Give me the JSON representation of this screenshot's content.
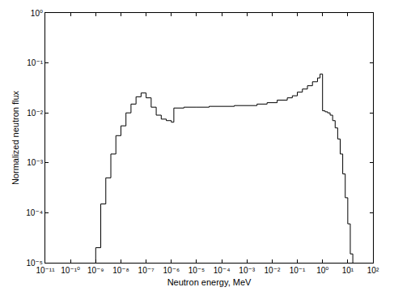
{
  "chart_data": {
    "type": "histogram",
    "x_label": "Neutron energy, MeV",
    "y_label": "Normalized neutron flux",
    "log": true,
    "grid": false,
    "color": "#000000",
    "bins": [
      1e-09,
      1.585e-09,
      2.512e-09,
      3.981e-09,
      6.31e-09,
      1e-08,
      1.585e-08,
      2.512e-08,
      3.981e-08,
      6.31e-08,
      1e-07,
      1.585e-07,
      2.512e-07,
      3.981e-07,
      6.31e-07,
      1e-06,
      1.259e-06,
      3.162e-06,
      1e-05,
      3.162e-05,
      0.0001,
      0.0003162,
      0.001,
      0.002512,
      0.00631,
      0.01585,
      0.03981,
      0.0631,
      0.1,
      0.1585,
      0.2512,
      0.3981,
      0.631,
      0.7943,
      1,
      1.259,
      1.585,
      1.995,
      2.512,
      3.162,
      3.981,
      5.012,
      6.31,
      7.943,
      10,
      12.59,
      15.85
    ],
    "values": [
      2e-05,
      0.00015,
      0.0005,
      0.0015,
      0.0035,
      0.0055,
      0.01,
      0.015,
      0.021,
      0.025,
      0.02,
      0.013,
      0.009,
      0.0075,
      0.007,
      0.0065,
      0.0125,
      0.013,
      0.013,
      0.0135,
      0.0135,
      0.014,
      0.014,
      0.015,
      0.016,
      0.018,
      0.02,
      0.022,
      0.026,
      0.03,
      0.035,
      0.042,
      0.05,
      0.06,
      0.011,
      0.0105,
      0.01,
      0.009,
      0.007,
      0.005,
      0.003,
      0.0015,
      0.0006,
      0.0002,
      6e-05,
      1.5e-05
    ],
    "xlim": [
      1e-11,
      100
    ],
    "ylim": [
      1e-05,
      1
    ],
    "xticks": [
      {
        "value": 1e-11,
        "label": "10⁻¹¹"
      },
      {
        "value": 1e-10,
        "label": "10⁻¹⁰"
      },
      {
        "value": 1e-09,
        "label": "10⁻⁹"
      },
      {
        "value": 1e-08,
        "label": "10⁻⁸"
      },
      {
        "value": 1e-07,
        "label": "10⁻⁷"
      },
      {
        "value": 1e-06,
        "label": "10⁻⁶"
      },
      {
        "value": 1e-05,
        "label": "10⁻⁵"
      },
      {
        "value": 0.0001,
        "label": "10⁻⁴"
      },
      {
        "value": 0.001,
        "label": "10⁻³"
      },
      {
        "value": 0.01,
        "label": "10⁻²"
      },
      {
        "value": 0.1,
        "label": "10⁻¹"
      },
      {
        "value": 1,
        "label": "10⁰"
      },
      {
        "value": 10,
        "label": "10¹"
      },
      {
        "value": 100,
        "label": "10²"
      }
    ],
    "yticks": [
      {
        "value": 1e-05,
        "label": "10⁻⁵"
      },
      {
        "value": 0.0001,
        "label": "10⁻⁴"
      },
      {
        "value": 0.001,
        "label": "10⁻³"
      },
      {
        "value": 0.01,
        "label": "10⁻²"
      },
      {
        "value": 0.1,
        "label": "10⁻¹"
      },
      {
        "value": 1,
        "label": "10⁰"
      }
    ]
  }
}
